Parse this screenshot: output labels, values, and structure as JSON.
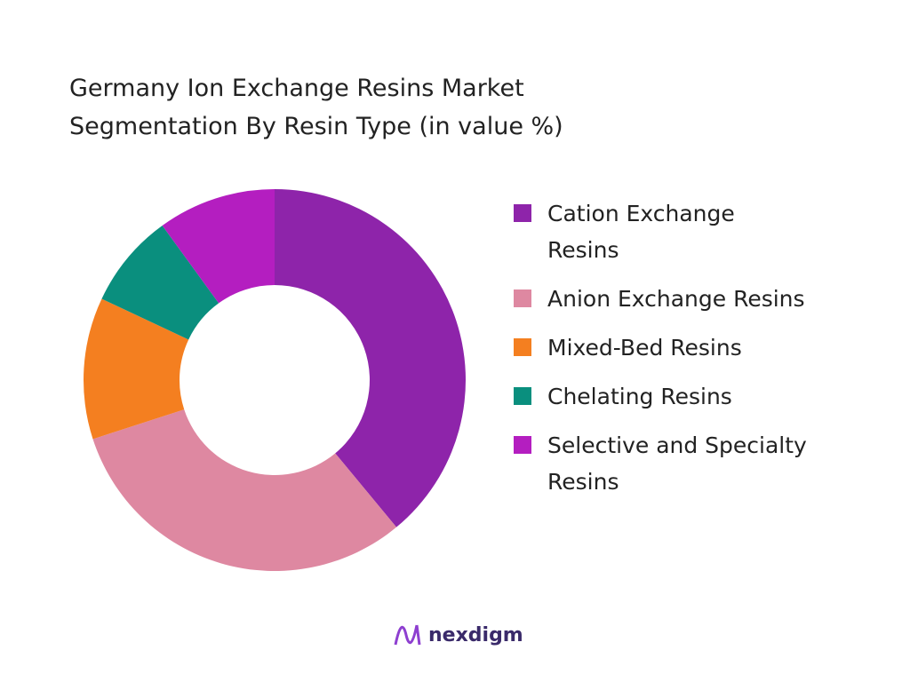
{
  "chart_data": {
    "type": "pie",
    "title": "Germany Ion Exchange Resins Market Segmentation By Resin Type (in value %)",
    "categories": [
      "Cation Exchange Resins",
      "Anion Exchange Resins",
      "Mixed-Bed Resins",
      "Chelating Resins",
      "Selective and Specialty Resins"
    ],
    "values": [
      39,
      31,
      12,
      8,
      10
    ],
    "colors": [
      "#8e24aa",
      "#de88a1",
      "#f47f20",
      "#0a8f7e",
      "#b41ec0"
    ],
    "donut": true,
    "legend": "right"
  },
  "footer": {
    "brand": "nexdigm"
  }
}
